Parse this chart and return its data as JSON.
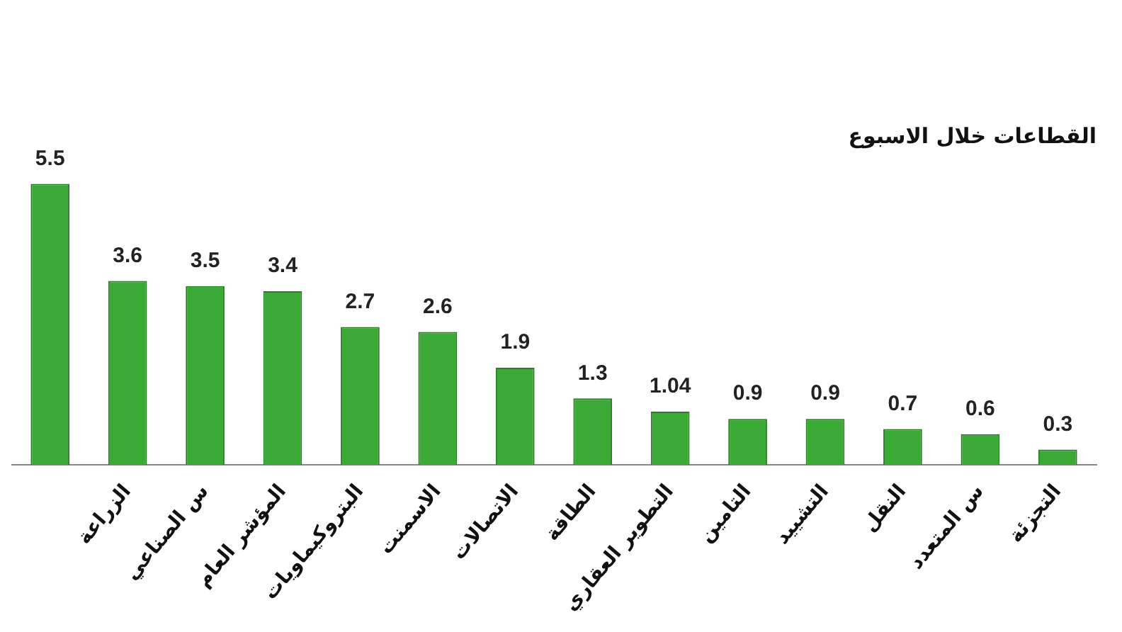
{
  "chart_data": {
    "type": "bar",
    "title": "القطاعات خلال الاسبوع",
    "categories": [
      null,
      "الزراعة",
      "س الصناعي",
      "المؤشر العام",
      "البتروكيماويات",
      "الاسمنت",
      "الاتصالات",
      "الطاقة",
      "التطوير العقاري",
      "التامين",
      "التشييد",
      "النقل",
      "س المتعدد",
      "التجزئة"
    ],
    "values": [
      5.5,
      3.6,
      3.5,
      3.4,
      2.7,
      2.6,
      1.9,
      1.3,
      1.04,
      0.9,
      0.9,
      0.7,
      0.6,
      0.3
    ],
    "color": "#3aa935",
    "data_labels": true
  }
}
